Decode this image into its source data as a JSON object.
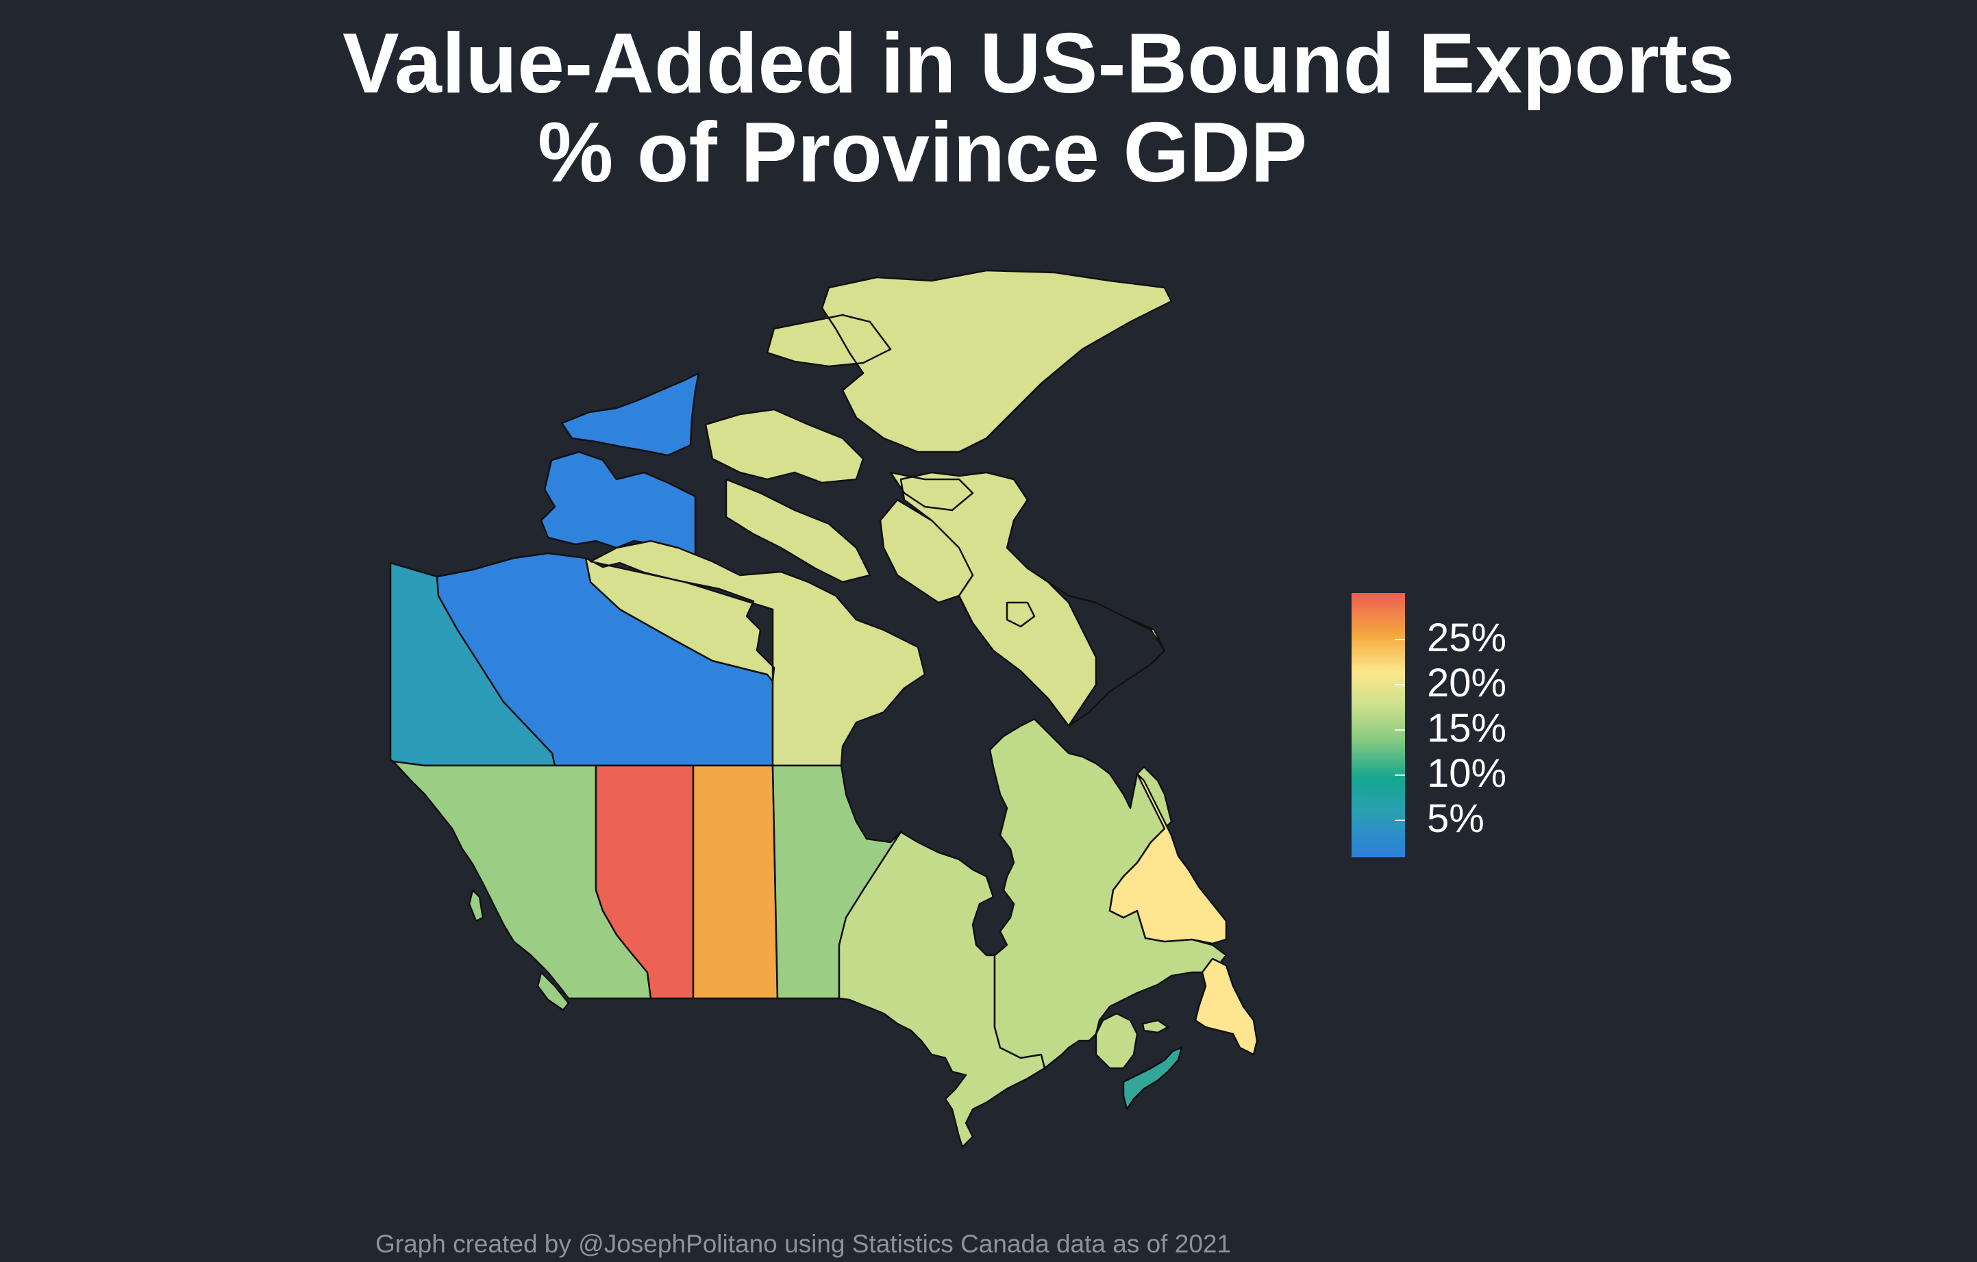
{
  "title": {
    "line1": "Value-Added in US-Bound Exports",
    "line2": "% of Province GDP"
  },
  "caption": "Graph created by @JosephPolitano using Statistics Canada data as of 2021",
  "colors": {
    "background": "#22262f",
    "border": "#111111"
  },
  "legend": {
    "labels": [
      "25%",
      "20%",
      "15%",
      "10%",
      "5%"
    ],
    "scale_min_percent": 2,
    "scale_max_percent": 29
  },
  "regions": [
    {
      "name": "Yukon",
      "value_percent": 6,
      "color": "#2b9bb8"
    },
    {
      "name": "Northwest Territories",
      "value_percent": 3,
      "color": "#2f83dd"
    },
    {
      "name": "Nunavut",
      "value_percent": 16,
      "color": "#d6e08e"
    },
    {
      "name": "British Columbia",
      "value_percent": 11,
      "color": "#9ccd84"
    },
    {
      "name": "Alberta",
      "value_percent": 27,
      "color": "#ec6255"
    },
    {
      "name": "Saskatchewan",
      "value_percent": 22,
      "color": "#f3a745"
    },
    {
      "name": "Manitoba",
      "value_percent": 11,
      "color": "#9ccd84"
    },
    {
      "name": "Ontario",
      "value_percent": 14,
      "color": "#c3dc8b"
    },
    {
      "name": "Quebec",
      "value_percent": 13,
      "color": "#bfdb89"
    },
    {
      "name": "Newfoundland and Labrador",
      "value_percent": 17,
      "color": "#fde68f"
    },
    {
      "name": "New Brunswick",
      "value_percent": 14,
      "color": "#c3dc8b"
    },
    {
      "name": "Nova Scotia",
      "value_percent": 8,
      "color": "#33a69a"
    },
    {
      "name": "Prince Edward Island",
      "value_percent": 13,
      "color": "#bfdb89"
    }
  ]
}
